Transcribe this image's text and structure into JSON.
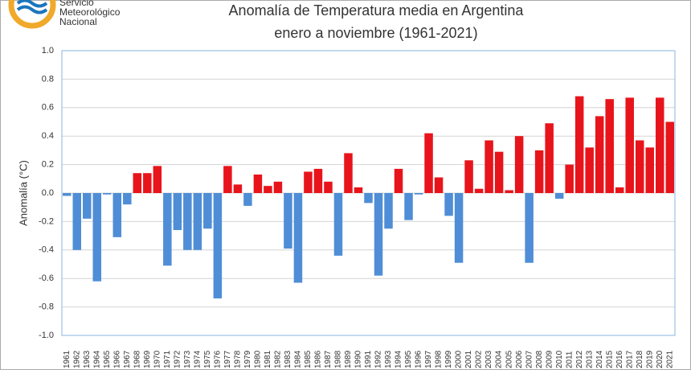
{
  "logo": {
    "lines": [
      "Servicio",
      "Meteorológico",
      "Nacional"
    ]
  },
  "chart_data": {
    "type": "bar",
    "title": "Anomalía de Temperatura media en Argentina",
    "subtitle": "enero a noviembre (1961-2021)",
    "y_label": "Anomalía (°C)",
    "categories": [
      "1961",
      "1962",
      "1963",
      "1964",
      "1965",
      "1966",
      "1967",
      "1968",
      "1969",
      "1970",
      "1971",
      "1972",
      "1973",
      "1974",
      "1975",
      "1976",
      "1977",
      "1978",
      "1979",
      "1980",
      "1981",
      "1982",
      "1983",
      "1984",
      "1985",
      "1986",
      "1987",
      "1988",
      "1989",
      "1990",
      "1991",
      "1992",
      "1993",
      "1994",
      "1995",
      "1996",
      "1997",
      "1998",
      "1999",
      "2000",
      "2001",
      "2002",
      "2003",
      "2004",
      "2005",
      "2006",
      "2007",
      "2008",
      "2009",
      "2010",
      "2011",
      "2012",
      "2013",
      "2014",
      "2015",
      "2016",
      "2017",
      "2018",
      "2019",
      "2020",
      "2021"
    ],
    "values": [
      -0.02,
      -0.4,
      -0.18,
      -0.62,
      -0.01,
      -0.31,
      -0.08,
      0.14,
      0.14,
      0.19,
      -0.51,
      -0.26,
      -0.4,
      -0.4,
      -0.25,
      -0.74,
      0.19,
      0.06,
      -0.09,
      0.13,
      0.05,
      0.08,
      -0.39,
      -0.63,
      0.15,
      0.17,
      0.08,
      -0.44,
      0.28,
      0.04,
      -0.07,
      -0.58,
      -0.25,
      0.17,
      -0.19,
      -0.01,
      0.42,
      0.11,
      -0.16,
      -0.49,
      0.23,
      0.03,
      0.37,
      0.29,
      0.02,
      0.4,
      -0.49,
      0.3,
      0.49,
      -0.04,
      0.2,
      0.68,
      0.32,
      0.54,
      0.66,
      0.04,
      0.67,
      0.37,
      0.32,
      0.67,
      0.5
    ],
    "positive_color": "#e8141b",
    "negative_color": "#4f8ed6",
    "ylim": [
      -1.0,
      1.0
    ],
    "yticks": [
      {
        "value": -1.0,
        "label": "-1.0"
      },
      -0.8,
      -0.6,
      -0.4,
      -0.2,
      {
        "value": 0,
        "label": "0.0"
      },
      0.2,
      0.4,
      0.6,
      0.8,
      {
        "value": 1.0,
        "label": "1.0"
      }
    ],
    "grid": true
  }
}
